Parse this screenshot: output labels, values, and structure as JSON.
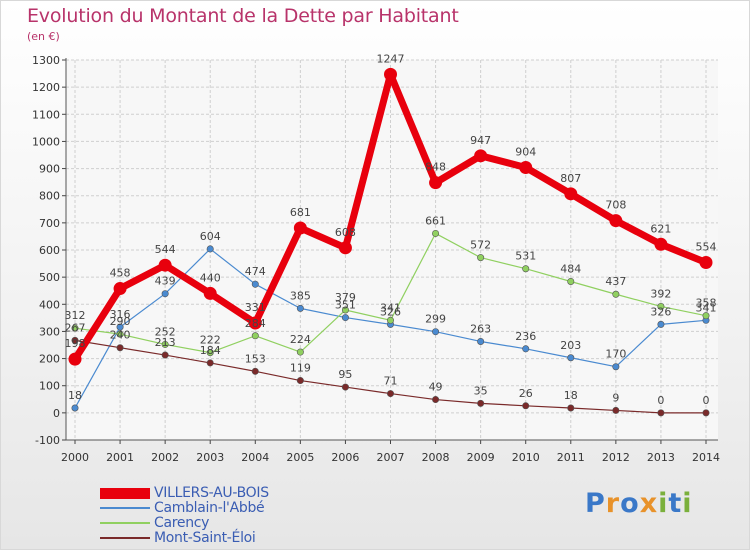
{
  "header": {
    "title": "Evolution du Montant de la Dette par Habitant",
    "subtitle": "(en €)"
  },
  "brand": {
    "text": "Proxiti",
    "colors": [
      "#3a78c8",
      "#e8922a",
      "#3a78c8",
      "#e8922a",
      "#7ab03c",
      "#3a78c8",
      "#7ab03c"
    ]
  },
  "chart_data": {
    "type": "line",
    "title": "Evolution du Montant de la Dette par Habitant",
    "subtitle": "(en €)",
    "xlabel": "",
    "ylabel": "",
    "x": [
      "2000",
      "2001",
      "2002",
      "2003",
      "2004",
      "2005",
      "2006",
      "2007",
      "2008",
      "2009",
      "2010",
      "2011",
      "2012",
      "2013",
      "2014"
    ],
    "ylim": [
      -100,
      1300
    ],
    "yticks": [
      -100,
      0,
      100,
      200,
      300,
      400,
      500,
      600,
      700,
      800,
      900,
      1000,
      1100,
      1200,
      1300
    ],
    "grid": true,
    "legend_position": "bottom-left",
    "series": [
      {
        "name": "VILLERS-AU-BOIS",
        "color": "#e8000d",
        "values": [
          198,
          458,
          544,
          440,
          331,
          681,
          608,
          1247,
          848,
          947,
          904,
          807,
          708,
          621,
          554
        ]
      },
      {
        "name": "Camblain-l'Abbé",
        "color": "#4a8ad0",
        "values": [
          18,
          316,
          439,
          604,
          474,
          385,
          351,
          326,
          299,
          263,
          236,
          203,
          170,
          326,
          341
        ]
      },
      {
        "name": "Carency",
        "color": "#90d060",
        "values": [
          312,
          290,
          252,
          222,
          284,
          224,
          379,
          341,
          661,
          572,
          531,
          484,
          437,
          392,
          358
        ]
      },
      {
        "name": "Mont-Saint-Éloi",
        "color": "#7a2a2a",
        "values": [
          267,
          240,
          213,
          184,
          153,
          119,
          95,
          71,
          49,
          35,
          26,
          18,
          9,
          0,
          0
        ]
      }
    ]
  }
}
